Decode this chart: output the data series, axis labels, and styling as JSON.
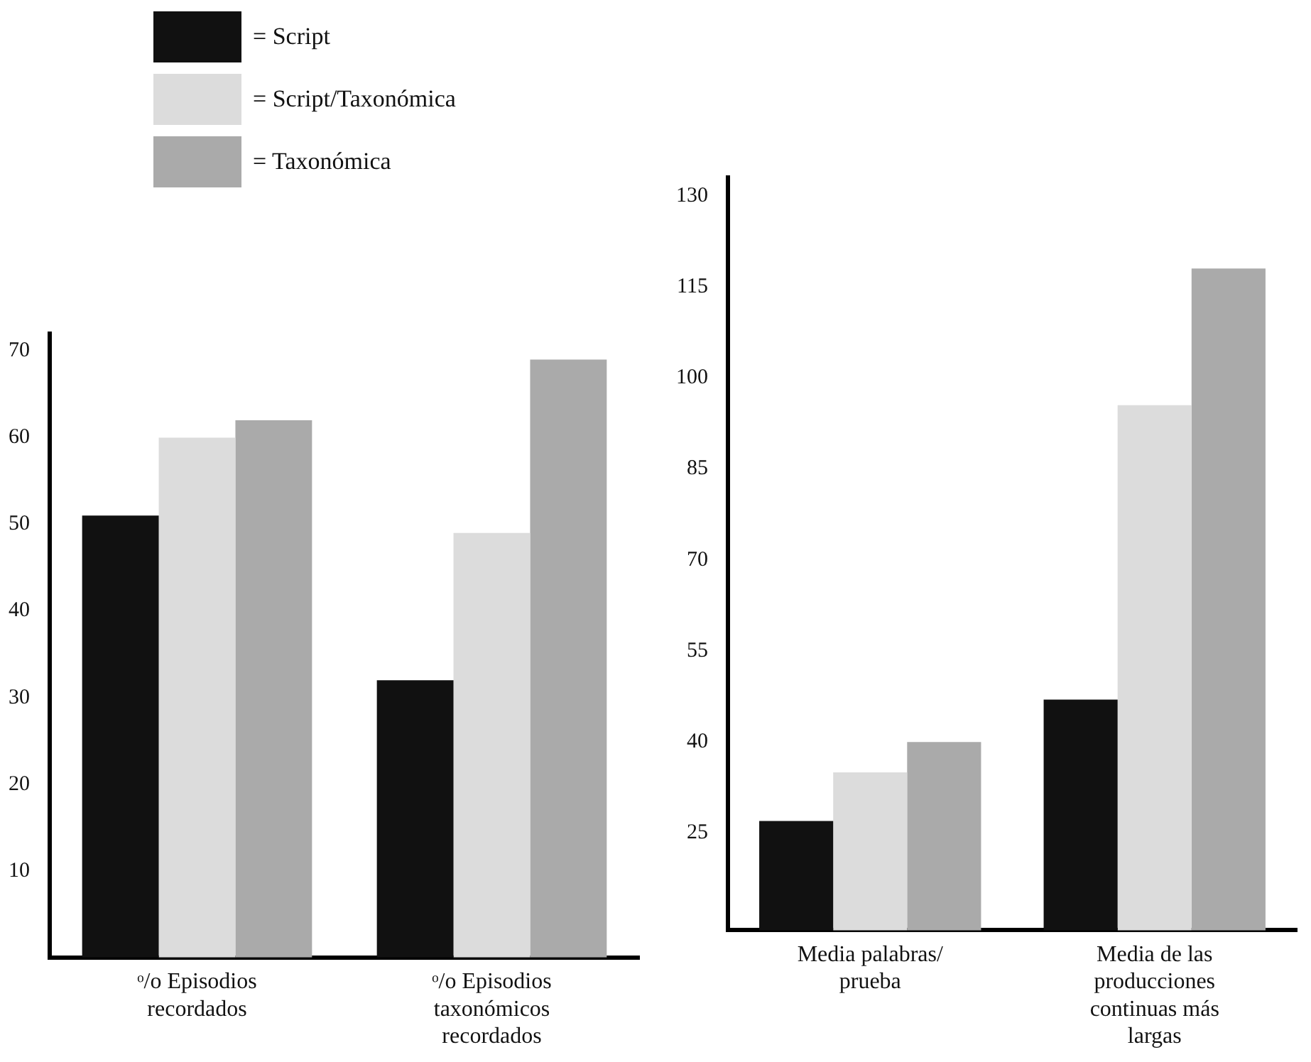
{
  "chart_data": [
    {
      "type": "bar",
      "categories": [
        "ᵒ/o Episodios recordados",
        "ᵒ/o Episodios taxonómicos recordados"
      ],
      "legend": "top left",
      "series": [
        {
          "name": "= Script",
          "color": "#111111",
          "values": [
            51,
            32
          ]
        },
        {
          "name": "= Script/Taxonómica",
          "color": "#dcdcdc",
          "values": [
            60,
            49
          ]
        },
        {
          "name": "= Taxonómica",
          "color": "#aaaaaa",
          "values": [
            62,
            69
          ]
        }
      ],
      "ylim": [
        0,
        72
      ],
      "yticks": [
        10,
        20,
        30,
        40,
        50,
        60,
        70
      ],
      "grid": false
    },
    {
      "type": "bar",
      "categories": [
        "Media palabras/ prueba",
        "Media de las producciones continuas más largas"
      ],
      "series": [
        {
          "color": "#111111",
          "values": [
            27,
            47
          ]
        },
        {
          "color": "#dcdcdc",
          "values": [
            35,
            95.5
          ]
        },
        {
          "color": "#aaaaaa",
          "values": [
            40,
            118
          ]
        }
      ],
      "ylim": [
        9,
        133
      ],
      "yticks": [
        25,
        40,
        55,
        70,
        85,
        100,
        115,
        130
      ],
      "grid": false
    }
  ]
}
